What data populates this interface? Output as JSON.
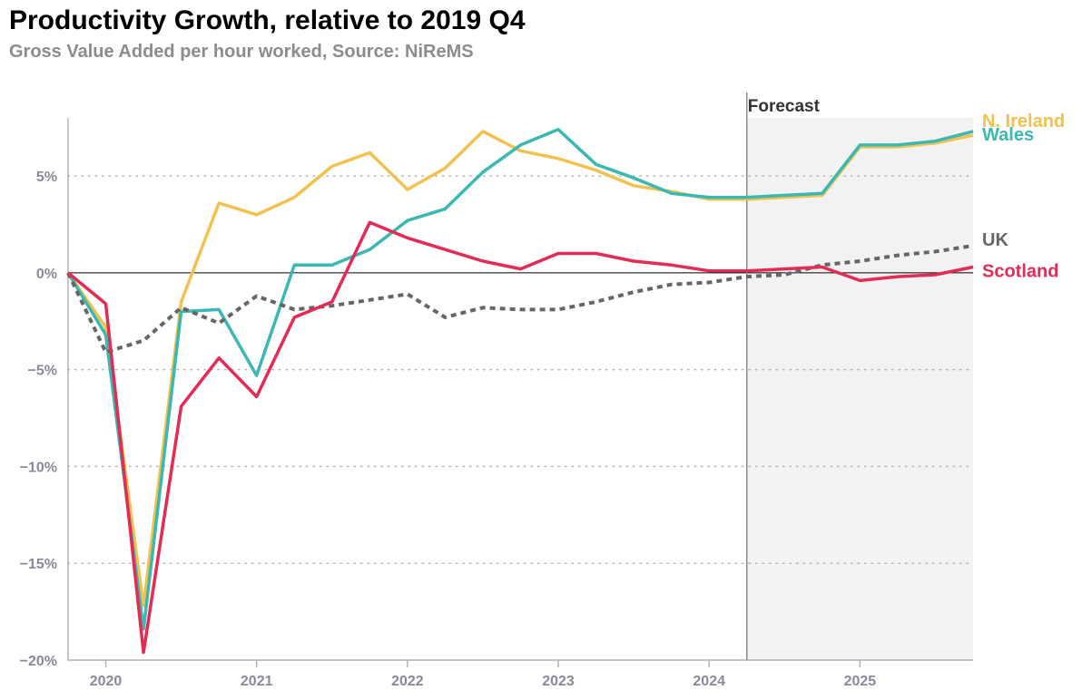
{
  "title": "Productivity Growth, relative to 2019 Q4",
  "subtitle": "Gross Value Added per hour worked, Source: NiReMS",
  "chart_data": {
    "type": "line",
    "title": "Productivity Growth, relative to 2019 Q4",
    "subtitle": "Gross Value Added per hour worked, Source: NiReMS",
    "xlabel": "",
    "ylabel": "",
    "x": [
      "2019 Q4",
      "2020 Q1",
      "2020 Q2",
      "2020 Q3",
      "2020 Q4",
      "2021 Q1",
      "2021 Q2",
      "2021 Q3",
      "2021 Q4",
      "2022 Q1",
      "2022 Q2",
      "2022 Q3",
      "2022 Q4",
      "2023 Q1",
      "2023 Q2",
      "2023 Q3",
      "2023 Q4",
      "2024 Q1",
      "2024 Q2",
      "2024 Q3",
      "2024 Q4",
      "2025 Q1",
      "2025 Q2",
      "2025 Q3",
      "2025 Q4"
    ],
    "x_ticks": [
      "2020",
      "2021",
      "2022",
      "2023",
      "2024",
      "2025"
    ],
    "y_ticks": [
      5,
      0,
      -5,
      -10,
      -15,
      -20
    ],
    "y_tick_labels": [
      "5%",
      "0%",
      "−5%",
      "−10%",
      "−15%",
      "−20%"
    ],
    "ylim": [
      -20,
      8
    ],
    "grid": "horizontal dotted",
    "legend": "inline labels at line ends (right)",
    "forecast": {
      "label": "Forecast",
      "start": "2024 Q2"
    },
    "series": [
      {
        "name": "N. Ireland",
        "color": "#f2c14e",
        "style": "solid",
        "values": [
          0,
          -2.8,
          -17.2,
          -1.5,
          3.6,
          3.0,
          3.9,
          5.5,
          6.2,
          4.3,
          5.4,
          7.3,
          6.3,
          5.9,
          5.3,
          4.5,
          4.2,
          3.8,
          3.8,
          3.9,
          4.0,
          6.5,
          6.5,
          6.7,
          7.1
        ]
      },
      {
        "name": "Wales",
        "color": "#3cb8b3",
        "style": "solid",
        "values": [
          0,
          -3.2,
          -18.4,
          -2.0,
          -1.9,
          -5.3,
          0.4,
          0.4,
          1.2,
          2.7,
          3.3,
          5.2,
          6.6,
          7.4,
          5.6,
          4.9,
          4.1,
          3.9,
          3.9,
          4.0,
          4.1,
          6.6,
          6.6,
          6.8,
          7.3
        ]
      },
      {
        "name": "UK",
        "color": "#666666",
        "style": "dotted",
        "values": [
          0,
          -4.1,
          -3.5,
          -1.8,
          -2.6,
          -1.2,
          -1.9,
          -1.7,
          -1.4,
          -1.1,
          -2.3,
          -1.8,
          -1.9,
          -1.9,
          -1.5,
          -1.0,
          -0.6,
          -0.5,
          -0.2,
          -0.1,
          0.4,
          0.6,
          0.9,
          1.1,
          1.4
        ]
      },
      {
        "name": "Scotland",
        "color": "#e32b55",
        "style": "solid",
        "values": [
          0,
          -1.6,
          -19.6,
          -6.9,
          -4.4,
          -6.4,
          -2.3,
          -1.5,
          2.6,
          1.8,
          1.2,
          0.6,
          0.2,
          1.0,
          1.0,
          0.6,
          0.4,
          0.1,
          0.1,
          0.2,
          0.3,
          -0.4,
          -0.2,
          -0.1,
          0.3
        ]
      }
    ]
  }
}
